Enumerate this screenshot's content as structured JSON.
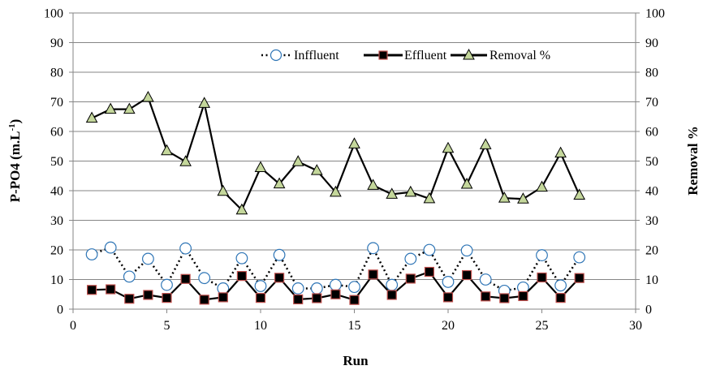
{
  "chart_data": {
    "type": "line",
    "xlabel": "Run",
    "ylabel": "P-PO4 (m.L",
    "ylabel_sup": "-1",
    "ylabel_tail": ")",
    "y2label": "Removal %",
    "xlim": [
      0,
      30
    ],
    "ylim": [
      0,
      100
    ],
    "y2lim": [
      0,
      100
    ],
    "xticks": [
      0,
      5,
      10,
      15,
      20,
      25,
      30
    ],
    "yticks": [
      0,
      10,
      20,
      30,
      40,
      50,
      60,
      70,
      80,
      90,
      100
    ],
    "y2ticks": [
      0,
      10,
      20,
      30,
      40,
      50,
      60,
      70,
      80,
      90,
      100
    ],
    "grid": "horizontal",
    "legend_position": "top-right",
    "x": [
      1,
      2,
      3,
      4,
      5,
      6,
      7,
      8,
      9,
      10,
      11,
      12,
      13,
      14,
      15,
      16,
      17,
      18,
      19,
      20,
      21,
      22,
      23,
      24,
      25,
      26,
      27
    ],
    "series": [
      {
        "name": "Inffluent",
        "axis": "left",
        "marker": "circle",
        "line": "dotted",
        "color": "#2e75b6",
        "values": [
          18.5,
          20.8,
          11,
          17,
          8.2,
          20.5,
          10.5,
          7,
          17.2,
          7.8,
          18.3,
          7,
          7,
          8.2,
          7.5,
          20.6,
          8.2,
          17,
          20,
          9.2,
          19.8,
          10,
          6.2,
          7.3,
          18.2,
          8,
          17.5
        ]
      },
      {
        "name": "Effluent",
        "axis": "left",
        "marker": "square",
        "line": "solid",
        "color": "#c0504d",
        "values": [
          6.5,
          6.7,
          3.5,
          4.8,
          3.8,
          10.2,
          3.2,
          4,
          11.2,
          3.8,
          10.6,
          3.3,
          3.7,
          5,
          3.1,
          11.7,
          4.8,
          10.3,
          12.6,
          4,
          11.5,
          4.3,
          3.7,
          4.4,
          10.7,
          3.8,
          10.5
        ]
      },
      {
        "name": "Removal %",
        "axis": "right",
        "marker": "triangle",
        "line": "solid",
        "color": "#c4d79b",
        "values": [
          64.5,
          67.5,
          67.5,
          71.5,
          53.5,
          49.8,
          69.5,
          39.8,
          33.5,
          47.8,
          42.3,
          49.8,
          46.8,
          39.5,
          55.8,
          41.8,
          38.8,
          39.5,
          37.3,
          54.3,
          42.2,
          55.5,
          37.5,
          37.2,
          41.2,
          52.7,
          38.5
        ]
      }
    ]
  }
}
